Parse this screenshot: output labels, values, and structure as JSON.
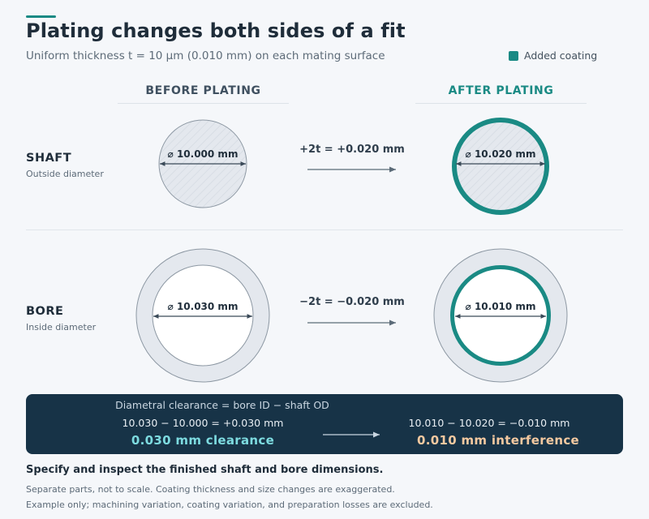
{
  "title": "Plating changes both sides of a fit",
  "subtitle": "Uniform thickness t = 10 µm (0.010 mm) on each mating surface",
  "legend": {
    "label": "Added coating",
    "color": "#1a8a84"
  },
  "columns": {
    "before": "BEFORE PLATING",
    "after": "AFTER PLATING"
  },
  "rows": {
    "shaft": {
      "name": "SHAFT",
      "sub": "Outside diameter",
      "before_dim": "⌀ 10.000 mm",
      "after_dim": "⌀ 10.020 mm",
      "delta": "+2t = +0.020 mm"
    },
    "bore": {
      "name": "BORE",
      "sub": "Inside diameter",
      "before_dim": "⌀ 10.030 mm",
      "after_dim": "⌀ 10.010 mm",
      "delta": "−2t = −0.020 mm"
    }
  },
  "summary": {
    "header": "Diametral clearance = bore ID − shaft OD",
    "before_eq": "10.030 − 10.000 = +0.030 mm",
    "before_result": "0.030 mm clearance",
    "after_eq": "10.010 − 10.020 = −0.010 mm",
    "after_result": "0.010 mm interference"
  },
  "notes": {
    "bold": "Specify and inspect the finished shaft and bore dimensions.",
    "line1": "Separate parts, not to scale. Coating thickness and size changes are exaggerated.",
    "line2": "Example only; machining variation, coating variation, and preparation losses are excluded."
  },
  "colors": {
    "coating": "#1a8a84",
    "panel": "#173347",
    "clearance": "#7ddbe0",
    "interference": "#f5c9a0"
  }
}
